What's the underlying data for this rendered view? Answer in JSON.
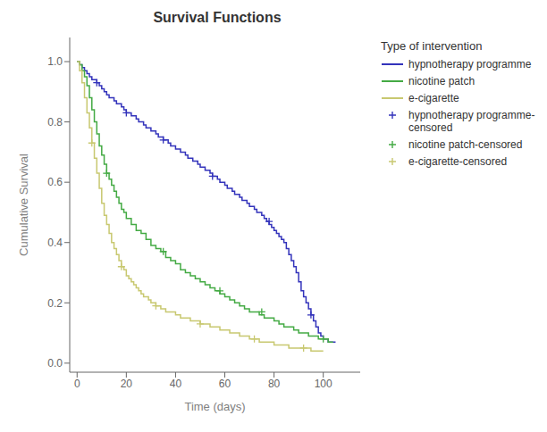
{
  "chart_data": {
    "type": "line",
    "title": "Survival Functions",
    "xlabel": "Time (days)",
    "ylabel": "Cumulative Survival",
    "legend_title": "Type of intervention",
    "legend": "right",
    "grid": false,
    "xlim": [
      -3,
      115
    ],
    "ylim": [
      -0.03,
      1.08
    ],
    "xticks": [
      0,
      20,
      40,
      60,
      80,
      100
    ],
    "yticks": [
      {
        "value": 0,
        "label": "0.0"
      },
      0.2,
      0.4,
      0.6,
      0.8,
      {
        "value": 1,
        "label": "1.0"
      }
    ],
    "series": [
      {
        "name": "hypnotherapy programme",
        "type": "step",
        "color": "#3333bb",
        "x": [
          0,
          1,
          2,
          3,
          4,
          5,
          6,
          7,
          8,
          9,
          10,
          11,
          12,
          13,
          14,
          15,
          16,
          17,
          18,
          19,
          20,
          21,
          22,
          23,
          24,
          25,
          26,
          27,
          28,
          29,
          30,
          31,
          32,
          33,
          34,
          35,
          36,
          37,
          38,
          39,
          40,
          41,
          42,
          43,
          44,
          45,
          46,
          47,
          48,
          49,
          50,
          51,
          52,
          53,
          54,
          55,
          56,
          57,
          58,
          59,
          60,
          61,
          62,
          63,
          64,
          65,
          66,
          67,
          68,
          69,
          70,
          71,
          72,
          73,
          74,
          75,
          76,
          77,
          78,
          79,
          80,
          81,
          82,
          83,
          84,
          85,
          86,
          87,
          88,
          89,
          90,
          91,
          92,
          93,
          94,
          95,
          96,
          97,
          98,
          99,
          100,
          101,
          102,
          103,
          104,
          105
        ],
        "values": [
          1.0,
          0.99,
          0.98,
          0.97,
          0.96,
          0.95,
          0.94,
          0.94,
          0.93,
          0.92,
          0.91,
          0.9,
          0.89,
          0.88,
          0.88,
          0.87,
          0.86,
          0.86,
          0.85,
          0.84,
          0.83,
          0.83,
          0.82,
          0.82,
          0.81,
          0.8,
          0.8,
          0.79,
          0.78,
          0.78,
          0.77,
          0.77,
          0.76,
          0.75,
          0.75,
          0.74,
          0.74,
          0.73,
          0.72,
          0.72,
          0.71,
          0.71,
          0.7,
          0.7,
          0.69,
          0.68,
          0.68,
          0.67,
          0.67,
          0.66,
          0.65,
          0.65,
          0.64,
          0.64,
          0.63,
          0.62,
          0.62,
          0.61,
          0.6,
          0.6,
          0.59,
          0.58,
          0.58,
          0.57,
          0.56,
          0.56,
          0.55,
          0.54,
          0.54,
          0.53,
          0.52,
          0.52,
          0.51,
          0.5,
          0.5,
          0.49,
          0.48,
          0.47,
          0.46,
          0.45,
          0.44,
          0.43,
          0.42,
          0.41,
          0.4,
          0.38,
          0.36,
          0.34,
          0.32,
          0.3,
          0.27,
          0.24,
          0.22,
          0.2,
          0.18,
          0.16,
          0.14,
          0.12,
          0.1,
          0.09,
          0.08,
          0.08,
          0.07,
          0.07,
          0.07,
          0.07
        ]
      },
      {
        "name": "nicotine patch",
        "type": "step",
        "color": "#44aa44",
        "x": [
          0,
          1,
          2,
          3,
          4,
          5,
          6,
          7,
          8,
          9,
          10,
          11,
          12,
          13,
          14,
          15,
          16,
          17,
          18,
          19,
          20,
          22,
          24,
          26,
          28,
          30,
          32,
          34,
          36,
          38,
          40,
          42,
          44,
          46,
          48,
          50,
          52,
          54,
          56,
          58,
          60,
          62,
          64,
          66,
          68,
          70,
          72,
          74,
          76,
          78,
          80,
          82,
          84,
          86,
          88,
          90,
          92,
          94,
          96,
          98,
          100,
          102,
          104
        ],
        "values": [
          1.0,
          0.99,
          0.97,
          0.95,
          0.92,
          0.88,
          0.84,
          0.8,
          0.76,
          0.72,
          0.69,
          0.66,
          0.63,
          0.61,
          0.59,
          0.57,
          0.55,
          0.53,
          0.51,
          0.5,
          0.48,
          0.46,
          0.44,
          0.43,
          0.41,
          0.39,
          0.38,
          0.37,
          0.35,
          0.34,
          0.33,
          0.31,
          0.3,
          0.29,
          0.28,
          0.27,
          0.26,
          0.25,
          0.24,
          0.23,
          0.22,
          0.21,
          0.2,
          0.19,
          0.18,
          0.17,
          0.17,
          0.16,
          0.15,
          0.15,
          0.14,
          0.13,
          0.12,
          0.12,
          0.11,
          0.1,
          0.1,
          0.09,
          0.09,
          0.08,
          0.08,
          0.07,
          0.07
        ]
      },
      {
        "name": "e-cigarette",
        "type": "step",
        "color": "#c8c870",
        "x": [
          0,
          1,
          2,
          3,
          4,
          5,
          6,
          7,
          8,
          9,
          10,
          11,
          12,
          13,
          14,
          15,
          16,
          17,
          18,
          19,
          20,
          21,
          22,
          23,
          24,
          25,
          26,
          27,
          28,
          29,
          30,
          32,
          34,
          36,
          38,
          40,
          42,
          44,
          46,
          48,
          50,
          52,
          54,
          56,
          58,
          60,
          62,
          64,
          66,
          68,
          70,
          72,
          74,
          76,
          78,
          80,
          82,
          84,
          86,
          88,
          90,
          95,
          100
        ],
        "values": [
          1.0,
          0.97,
          0.93,
          0.88,
          0.83,
          0.78,
          0.73,
          0.68,
          0.63,
          0.58,
          0.53,
          0.49,
          0.46,
          0.43,
          0.4,
          0.38,
          0.36,
          0.34,
          0.32,
          0.31,
          0.29,
          0.28,
          0.27,
          0.26,
          0.25,
          0.24,
          0.23,
          0.22,
          0.22,
          0.21,
          0.2,
          0.19,
          0.18,
          0.17,
          0.17,
          0.16,
          0.15,
          0.15,
          0.14,
          0.14,
          0.13,
          0.13,
          0.12,
          0.12,
          0.11,
          0.11,
          0.1,
          0.1,
          0.09,
          0.09,
          0.08,
          0.08,
          0.07,
          0.07,
          0.07,
          0.06,
          0.06,
          0.06,
          0.05,
          0.05,
          0.05,
          0.04,
          0.04
        ]
      },
      {
        "name": "hypnotherapy programme-\ncensored",
        "type": "scatter",
        "marker": "plus",
        "color": "#3333bb",
        "x": [
          8,
          20,
          35,
          55,
          78,
          95
        ],
        "values": [
          0.93,
          0.83,
          0.74,
          0.62,
          0.47,
          0.16
        ]
      },
      {
        "name": "nicotine patch-censored",
        "type": "scatter",
        "marker": "plus",
        "color": "#44aa44",
        "x": [
          12,
          35,
          58,
          75,
          100
        ],
        "values": [
          0.63,
          0.37,
          0.24,
          0.17,
          0.08
        ]
      },
      {
        "name": "e-cigarette-censored",
        "type": "scatter",
        "marker": "plus",
        "color": "#c8c870",
        "x": [
          6,
          18,
          32,
          50,
          72,
          92
        ],
        "values": [
          0.73,
          0.32,
          0.19,
          0.13,
          0.08,
          0.05
        ]
      }
    ]
  }
}
